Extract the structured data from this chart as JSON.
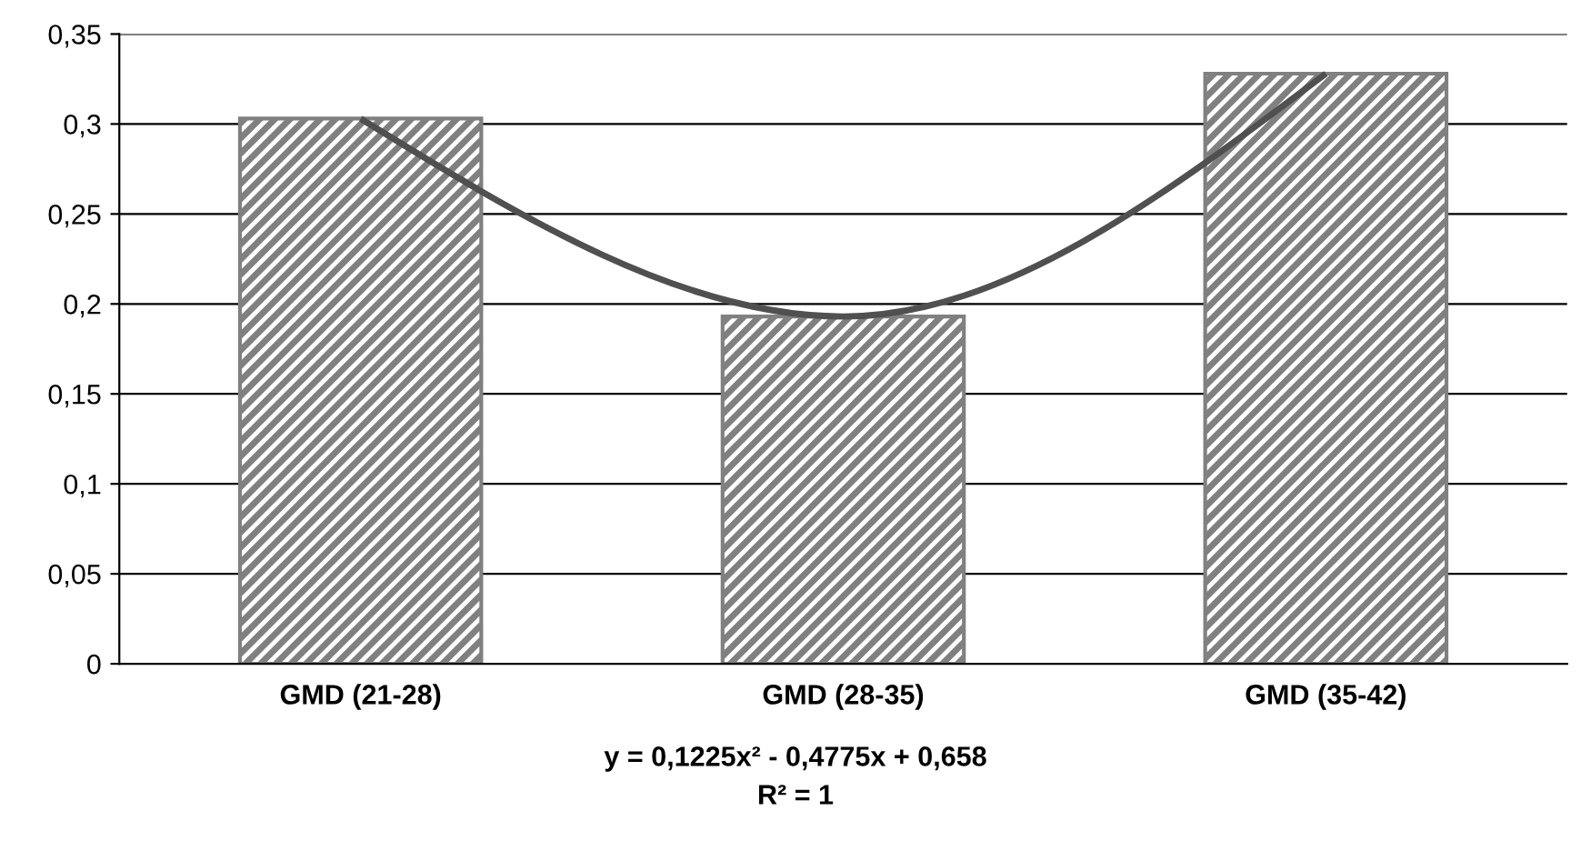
{
  "chart_data": {
    "type": "bar",
    "categories": [
      "GMD (21-28)",
      "GMD (28-35)",
      "GMD (35-42)"
    ],
    "series": [
      {
        "color": "#808080",
        "values": [
          0.303,
          0.193,
          0.328
        ]
      },
      {
        "type": "line",
        "color": "#505050",
        "x": [
          "GMD (21-28)",
          "GMD (28-35)",
          "GMD (35-42)"
        ],
        "values": [
          0.303,
          0.193,
          0.328
        ]
      }
    ],
    "ylim": [
      0,
      0.35
    ],
    "yticks": [
      0,
      {
        "value": 0.05,
        "label": "0,05"
      },
      {
        "value": 0.1,
        "label": "0,1"
      },
      {
        "value": 0.15,
        "label": "0,15"
      },
      {
        "value": 0.2,
        "label": "0,2"
      },
      {
        "value": 0.25,
        "label": "0,25"
      },
      {
        "value": 0.3,
        "label": "0,3"
      },
      {
        "value": 0.35,
        "label": "0,35"
      }
    ],
    "grid": "y",
    "annotations": [
      "y = 0,1225x² - 0,4775x + 0,658",
      "R² = 1"
    ]
  }
}
